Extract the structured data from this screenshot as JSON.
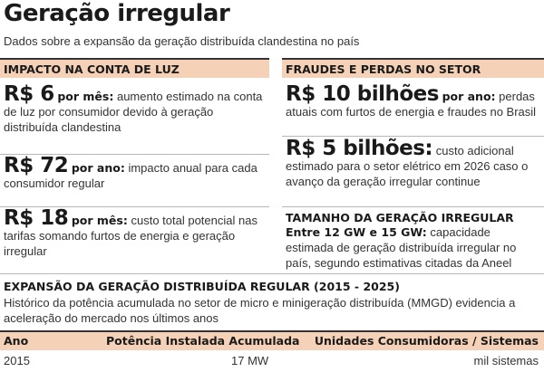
{
  "header": {
    "title": "Geração irregular",
    "subtitle": "Dados sobre a expansão da geração distribuída clandestina no país"
  },
  "left": {
    "heading": "IMPACTO NA CONTA DE LUZ",
    "items": [
      {
        "value": "R$ 6",
        "unit": "por mês:",
        "text_first": " aumento estimado na conta de",
        "text_rest": "luz por consumidor devido à geração distribuída clandestina"
      },
      {
        "value": "R$ 72",
        "unit": "por ano:",
        "text_first": " impacto anual para cada",
        "text_rest": "consumidor regular"
      },
      {
        "value": "R$ 18",
        "unit": "por mês:",
        "text_first": " custo total potencial nas",
        "text_rest": "tarifas somando furtos de energia e geração irregular"
      }
    ]
  },
  "right": {
    "heading": "FRAUDES E PERDAS NO SETOR",
    "items": [
      {
        "value": "R$ 10 bilhões",
        "unit": "por ano:",
        "text_first": " perdas atuais",
        "text_rest": "com furtos de energia e fraudes no Brasil"
      },
      {
        "value": "R$ 5 bilhões:",
        "unit": "",
        "text_first": " custo adicional",
        "text_rest": "estimado para o setor elétrico em 2026 caso o avanço da geração irregular continue"
      }
    ],
    "size_heading": "TAMANHO DA GERAÇÃO IRREGULAR",
    "size_strong": "Entre 12 GW e 15 GW:",
    "size_text_first": " capacidade estimada de",
    "size_text_rest": "geração distribuída irregular no país, segundo estimativas citadas da Aneel"
  },
  "expansion": {
    "title": "EXPANSÃO DA GERAÇÃO DISTRIBUÍDA REGULAR (2015 - 2025)",
    "description": "Histórico da potência acumulada no setor de micro e minigeração distribuída (MMGD) evidencia a aceleração do mercado nos últimos anos",
    "columns": [
      "Ano",
      "Potência Instalada Acumulada",
      "Unidades Consumidoras / Sistemas"
    ],
    "rows": [
      {
        "year": "2015",
        "power": "17 MW",
        "units": "mil sistemas"
      }
    ]
  }
}
